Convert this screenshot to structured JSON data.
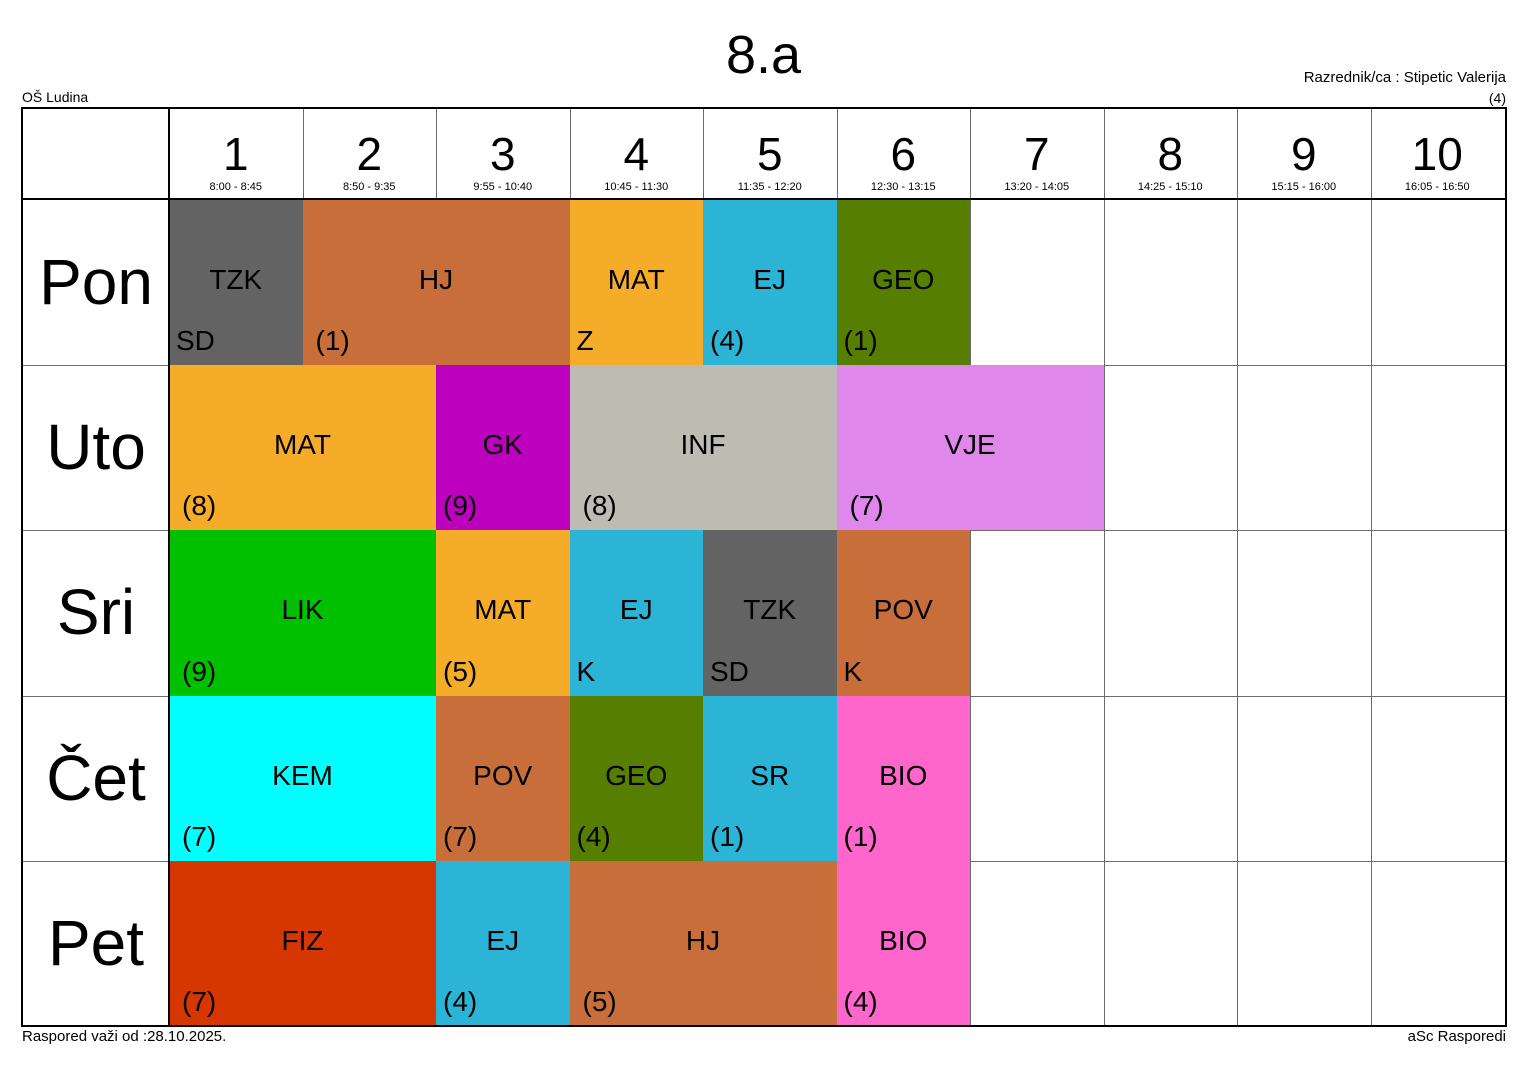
{
  "class_name": "8.a",
  "school": "OŠ Ludina",
  "class_teacher": "Razrednik/ca : Stipetic Valerija",
  "class_teacher_room": "(4)",
  "footer_valid_from": "Raspored važi od :28.10.2025.",
  "footer_brand": "aSc Rasporedi",
  "periods": [
    {
      "num": "1",
      "time": "8:00 - 8:45"
    },
    {
      "num": "2",
      "time": "8:50 - 9:35"
    },
    {
      "num": "3",
      "time": "9:55 - 10:40"
    },
    {
      "num": "4",
      "time": "10:45 - 11:30"
    },
    {
      "num": "5",
      "time": "11:35 - 12:20"
    },
    {
      "num": "6",
      "time": "12:30 - 13:15"
    },
    {
      "num": "7",
      "time": "13:20 - 14:05"
    },
    {
      "num": "8",
      "time": "14:25 - 15:10"
    },
    {
      "num": "9",
      "time": "15:15 - 16:00"
    },
    {
      "num": "10",
      "time": "16:05 - 16:50"
    }
  ],
  "days": [
    "Pon",
    "Uto",
    "Sri",
    "Čet",
    "Pet"
  ],
  "lessons": [
    {
      "day": 0,
      "start": 1,
      "span": 1,
      "subject": "TZK",
      "room": "SD",
      "color": "#636363",
      "text_color": "#000000"
    },
    {
      "day": 0,
      "start": 2,
      "span": 2,
      "subject": "HJ",
      "room": "(1)",
      "color": "#c76e3a",
      "text_color": "#000000"
    },
    {
      "day": 0,
      "start": 4,
      "span": 1,
      "subject": "MAT",
      "room": "Z",
      "color": "#f5ac28",
      "text_color": "#000000"
    },
    {
      "day": 0,
      "start": 5,
      "span": 1,
      "subject": "EJ",
      "room": "(4)",
      "color": "#2bb4d6",
      "text_color": "#000000"
    },
    {
      "day": 0,
      "start": 6,
      "span": 1,
      "subject": "GEO",
      "room": "(1)",
      "color": "#567e00",
      "text_color": "#000000"
    },
    {
      "day": 1,
      "start": 1,
      "span": 2,
      "subject": "MAT",
      "room": "(8)",
      "color": "#f5ac28",
      "text_color": "#000000"
    },
    {
      "day": 1,
      "start": 3,
      "span": 1,
      "subject": "GK",
      "room": "(9)",
      "color": "#bd00bd",
      "text_color": "#000000"
    },
    {
      "day": 1,
      "start": 4,
      "span": 2,
      "subject": "INF",
      "room": "(8)",
      "color": "#bcbcb3",
      "text_color": "#000000"
    },
    {
      "day": 1,
      "start": 6,
      "span": 2,
      "subject": "VJE",
      "room": "(7)",
      "color": "#e087ec",
      "text_color": "#000000"
    },
    {
      "day": 2,
      "start": 1,
      "span": 2,
      "subject": "LIK",
      "room": "(9)",
      "color": "#00c000",
      "text_color": "#000000"
    },
    {
      "day": 2,
      "start": 3,
      "span": 1,
      "subject": "MAT",
      "room": "(5)",
      "color": "#f5ac28",
      "text_color": "#000000"
    },
    {
      "day": 2,
      "start": 4,
      "span": 1,
      "subject": "EJ",
      "room": "K",
      "color": "#2bb4d6",
      "text_color": "#000000"
    },
    {
      "day": 2,
      "start": 5,
      "span": 1,
      "subject": "TZK",
      "room": "SD",
      "color": "#636363",
      "text_color": "#000000"
    },
    {
      "day": 2,
      "start": 6,
      "span": 1,
      "subject": "POV",
      "room": "K",
      "color": "#c76e3a",
      "text_color": "#000000"
    },
    {
      "day": 3,
      "start": 1,
      "span": 2,
      "subject": "KEM",
      "room": "(7)",
      "color": "#00ffff",
      "text_color": "#000000"
    },
    {
      "day": 3,
      "start": 3,
      "span": 1,
      "subject": "POV",
      "room": "(7)",
      "color": "#c76e3a",
      "text_color": "#000000"
    },
    {
      "day": 3,
      "start": 4,
      "span": 1,
      "subject": "GEO",
      "room": "(4)",
      "color": "#567e00",
      "text_color": "#000000"
    },
    {
      "day": 3,
      "start": 5,
      "span": 1,
      "subject": "SR",
      "room": "(1)",
      "color": "#2bb4d6",
      "text_color": "#000000"
    },
    {
      "day": 3,
      "start": 6,
      "span": 1,
      "subject": "BIO",
      "room": "(1)",
      "color": "#ff66cc",
      "text_color": "#000000"
    },
    {
      "day": 4,
      "start": 1,
      "span": 2,
      "subject": "FIZ",
      "room": "(7)",
      "color": "#d63600",
      "text_color": "#000000"
    },
    {
      "day": 4,
      "start": 3,
      "span": 1,
      "subject": "EJ",
      "room": "(4)",
      "color": "#2bb4d6",
      "text_color": "#000000"
    },
    {
      "day": 4,
      "start": 4,
      "span": 2,
      "subject": "HJ",
      "room": "(5)",
      "color": "#c76e3a",
      "text_color": "#000000"
    },
    {
      "day": 4,
      "start": 6,
      "span": 1,
      "subject": "BIO",
      "room": "(4)",
      "color": "#ff66cc",
      "text_color": "#000000"
    }
  ]
}
